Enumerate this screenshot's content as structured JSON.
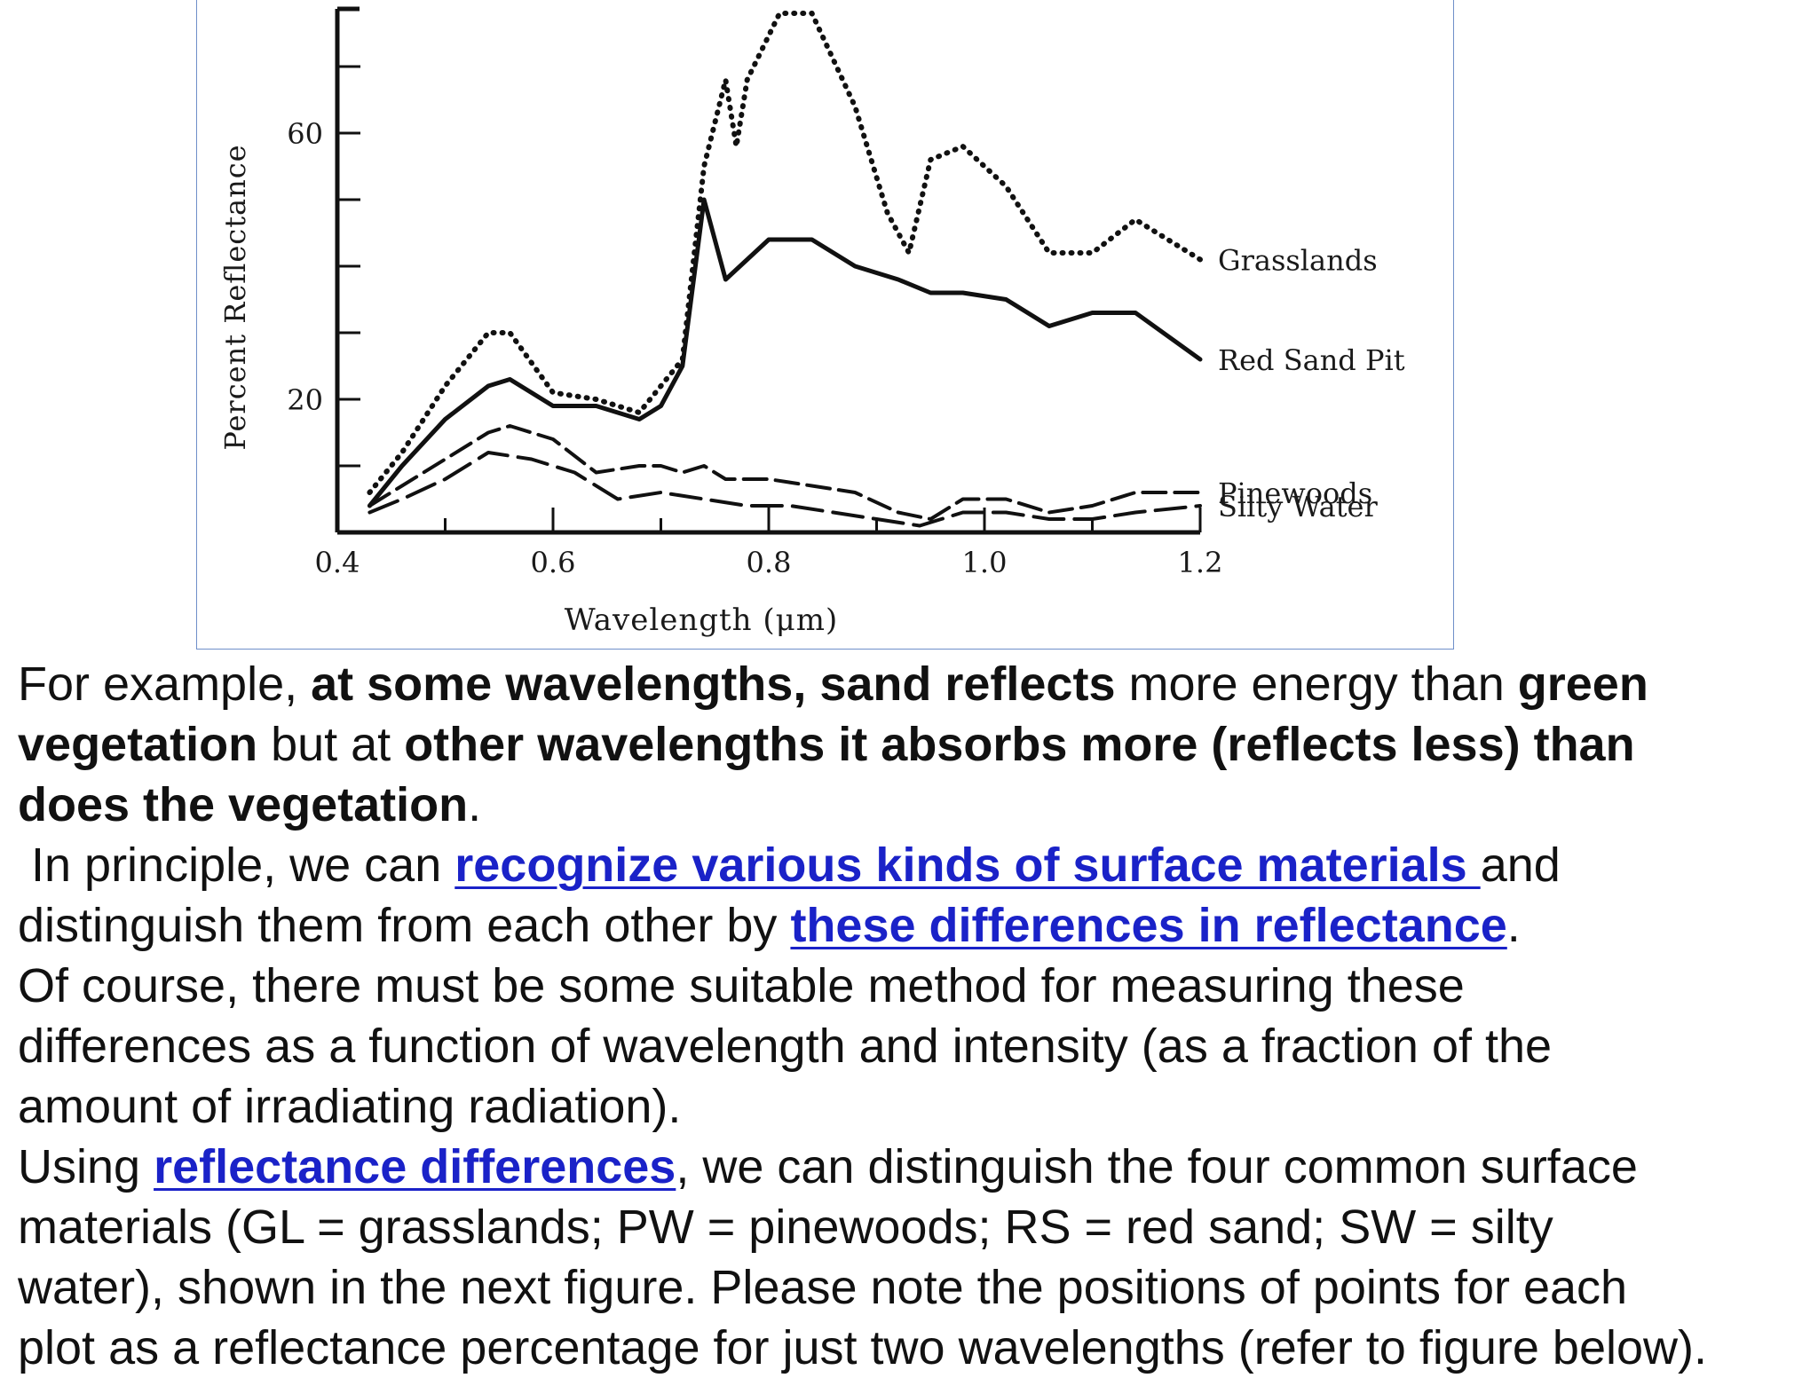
{
  "chart_data": {
    "type": "line",
    "xlabel": "Wavelength (μm)",
    "ylabel": "Percent Reflectance",
    "x_ticks": [
      "0.4",
      "0.6",
      "0.8",
      "1.0",
      "1.2"
    ],
    "y_ticks": [
      "20",
      "60"
    ],
    "xlim": [
      0.4,
      1.2
    ],
    "ylim": [
      0,
      80
    ],
    "series": [
      {
        "name": "Pinewoods",
        "style": "dashed",
        "x": [
          0.43,
          0.46,
          0.5,
          0.54,
          0.56,
          0.6,
          0.64,
          0.68,
          0.7,
          0.72,
          0.74,
          0.76,
          0.8,
          0.84,
          0.88,
          0.92,
          0.95,
          0.98,
          1.02,
          1.06,
          1.1,
          1.14,
          1.2
        ],
        "y": [
          4,
          7,
          11,
          15,
          16,
          14,
          9,
          10,
          10,
          9,
          10,
          8,
          8,
          7,
          6,
          3,
          2,
          5,
          5,
          3,
          4,
          6,
          6
        ]
      },
      {
        "name": "Grasslands",
        "style": "dotted",
        "x": [
          0.43,
          0.46,
          0.5,
          0.54,
          0.56,
          0.6,
          0.64,
          0.68,
          0.72,
          0.74,
          0.76,
          0.77,
          0.78,
          0.81,
          0.84,
          0.88,
          0.91,
          0.93,
          0.95,
          0.98,
          1.02,
          1.06,
          1.1,
          1.14,
          1.2
        ],
        "y": [
          6,
          12,
          22,
          30,
          30,
          21,
          20,
          18,
          26,
          55,
          68,
          58,
          68,
          78,
          78,
          64,
          48,
          42,
          56,
          58,
          52,
          42,
          42,
          47,
          41
        ]
      },
      {
        "name": "Red Sand Pit",
        "style": "solid",
        "x": [
          0.43,
          0.46,
          0.5,
          0.54,
          0.56,
          0.6,
          0.64,
          0.68,
          0.7,
          0.72,
          0.74,
          0.76,
          0.8,
          0.84,
          0.88,
          0.92,
          0.95,
          0.98,
          1.02,
          1.06,
          1.1,
          1.14,
          1.2
        ],
        "y": [
          4,
          10,
          17,
          22,
          23,
          19,
          19,
          17,
          19,
          25,
          50,
          38,
          44,
          44,
          40,
          38,
          36,
          36,
          35,
          31,
          33,
          33,
          26
        ]
      },
      {
        "name": "Silty Water",
        "style": "long-dash",
        "x": [
          0.43,
          0.46,
          0.5,
          0.54,
          0.58,
          0.62,
          0.66,
          0.7,
          0.74,
          0.78,
          0.82,
          0.86,
          0.9,
          0.94,
          0.98,
          1.02,
          1.06,
          1.1,
          1.14,
          1.2
        ],
        "y": [
          3,
          5,
          8,
          12,
          11,
          9,
          5,
          6,
          5,
          4,
          4,
          3,
          2,
          1,
          3,
          3,
          2,
          2,
          3,
          4
        ]
      }
    ]
  },
  "paragraphs": {
    "p1": {
      "t1": "For example, ",
      "t2": "at some wavelengths, sand reflects",
      "t3": " more energy than ",
      "t4": "green",
      "t5": "vegetation",
      "t6": " but at ",
      "t7": "other wavelengths it absorbs more (reflects less) than",
      "t8": "does the vegetation",
      "t9": "."
    },
    "p2": {
      "t1": " In principle, we can ",
      "link1": "recognize various kinds of surface materials ",
      "t2": "and",
      "t3": "distinguish them from each other by ",
      "link2": "these differences in reflectance",
      "t4": "."
    },
    "p3": {
      "line1": "Of course, there must be some suitable method for measuring these",
      "line2": "differences as a function of wavelength and intensity (as a fraction of the",
      "line3": "amount of irradiating radiation)."
    },
    "p4": {
      "t1": "Using ",
      "link": "reflectance differences",
      "t2": ", we can distinguish the four common surface",
      "line2": "materials (GL = grasslands; PW = pinewoods; RS = red sand; SW = silty",
      "line3": "water), shown in the next figure. Please note the positions of points for each",
      "line4": "plot as a reflectance percentage for just two wavelengths (refer to figure below)."
    }
  }
}
